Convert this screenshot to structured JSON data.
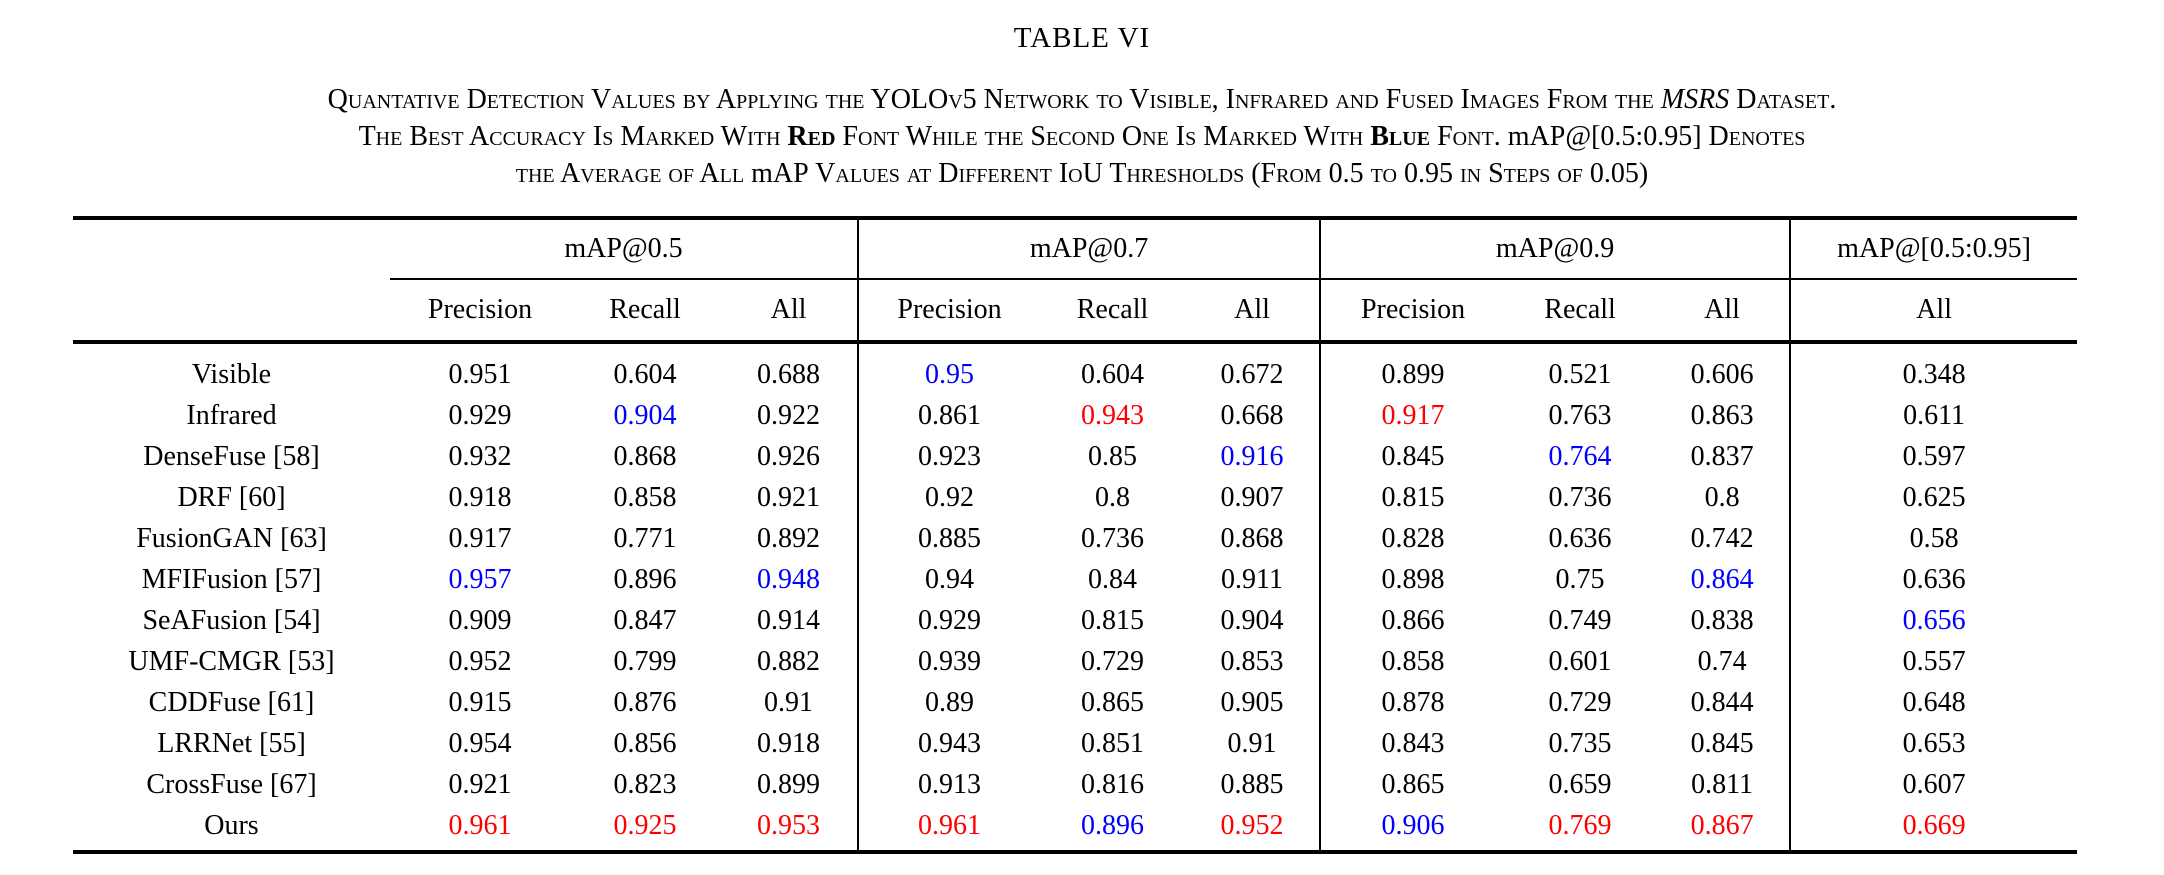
{
  "title": "TABLE VI",
  "caption_lines": [
    [
      {
        "t": "Quantative Detection Values by Applying the YOLOv5 Network to Visible, Infrared and Fused Images From the "
      },
      {
        "t": "MSRS",
        "style": "italic"
      },
      {
        "t": " Dataset."
      }
    ],
    [
      {
        "t": "The Best Accuracy Is Marked With "
      },
      {
        "t": "Red",
        "style": "bold"
      },
      {
        "t": " Font While the Second One Is Marked With "
      },
      {
        "t": "Blue",
        "style": "bold"
      },
      {
        "t": " Font. "
      },
      {
        "t": "mAP@[0.5:0.95]",
        "style": "nosc"
      },
      {
        "t": " Denotes"
      }
    ],
    [
      {
        "t": "the Average of All "
      },
      {
        "t": "mAP",
        "style": "nosc"
      },
      {
        "t": " Values at Different IoU Thresholds (From 0.5 to 0.95 in Steps of 0.05)"
      }
    ]
  ],
  "colors": {
    "best": "#ff0000",
    "second": "#0000ff"
  },
  "table": {
    "groups": [
      {
        "label": "mAP@0.5"
      },
      {
        "label": "mAP@0.7"
      },
      {
        "label": "mAP@0.9"
      },
      {
        "label": "mAP@[0.5:0.95]"
      }
    ],
    "subheaders": [
      "Precision",
      "Recall",
      "All",
      "Precision",
      "Recall",
      "All",
      "Precision",
      "Recall",
      "All",
      "All"
    ],
    "rows": [
      {
        "label": "Visible",
        "values": [
          "0.951",
          "0.604",
          "0.688",
          "0.95",
          "0.604",
          "0.672",
          "0.899",
          "0.521",
          "0.606",
          "0.348"
        ],
        "marks": {
          "3": "second"
        }
      },
      {
        "label": "Infrared",
        "values": [
          "0.929",
          "0.904",
          "0.922",
          "0.861",
          "0.943",
          "0.668",
          "0.917",
          "0.763",
          "0.863",
          "0.611"
        ],
        "marks": {
          "1": "second",
          "4": "best",
          "6": "best"
        }
      },
      {
        "label": "DenseFuse [58]",
        "values": [
          "0.932",
          "0.868",
          "0.926",
          "0.923",
          "0.85",
          "0.916",
          "0.845",
          "0.764",
          "0.837",
          "0.597"
        ],
        "marks": {
          "5": "second",
          "7": "second"
        }
      },
      {
        "label": "DRF [60]",
        "values": [
          "0.918",
          "0.858",
          "0.921",
          "0.92",
          "0.8",
          "0.907",
          "0.815",
          "0.736",
          "0.8",
          "0.625"
        ],
        "marks": {}
      },
      {
        "label": "FusionGAN [63]",
        "values": [
          "0.917",
          "0.771",
          "0.892",
          "0.885",
          "0.736",
          "0.868",
          "0.828",
          "0.636",
          "0.742",
          "0.58"
        ],
        "marks": {}
      },
      {
        "label": "MFIFusion [57]",
        "values": [
          "0.957",
          "0.896",
          "0.948",
          "0.94",
          "0.84",
          "0.911",
          "0.898",
          "0.75",
          "0.864",
          "0.636"
        ],
        "marks": {
          "0": "second",
          "2": "second",
          "8": "second"
        }
      },
      {
        "label": "SeAFusion [54]",
        "values": [
          "0.909",
          "0.847",
          "0.914",
          "0.929",
          "0.815",
          "0.904",
          "0.866",
          "0.749",
          "0.838",
          "0.656"
        ],
        "marks": {
          "9": "second"
        }
      },
      {
        "label": "UMF-CMGR [53]",
        "values": [
          "0.952",
          "0.799",
          "0.882",
          "0.939",
          "0.729",
          "0.853",
          "0.858",
          "0.601",
          "0.74",
          "0.557"
        ],
        "marks": {}
      },
      {
        "label": "CDDFuse [61]",
        "values": [
          "0.915",
          "0.876",
          "0.91",
          "0.89",
          "0.865",
          "0.905",
          "0.878",
          "0.729",
          "0.844",
          "0.648"
        ],
        "marks": {}
      },
      {
        "label": "LRRNet [55]",
        "values": [
          "0.954",
          "0.856",
          "0.918",
          "0.943",
          "0.851",
          "0.91",
          "0.843",
          "0.735",
          "0.845",
          "0.653"
        ],
        "marks": {}
      },
      {
        "label": "CrossFuse [67]",
        "values": [
          "0.921",
          "0.823",
          "0.899",
          "0.913",
          "0.816",
          "0.885",
          "0.865",
          "0.659",
          "0.811",
          "0.607"
        ],
        "marks": {}
      },
      {
        "label": "Ours",
        "values": [
          "0.961",
          "0.925",
          "0.953",
          "0.961",
          "0.896",
          "0.952",
          "0.906",
          "0.769",
          "0.867",
          "0.669"
        ],
        "marks": {
          "0": "best",
          "1": "best",
          "2": "best",
          "3": "best",
          "4": "second",
          "5": "best",
          "6": "second",
          "7": "best",
          "8": "best",
          "9": "best"
        }
      }
    ]
  }
}
